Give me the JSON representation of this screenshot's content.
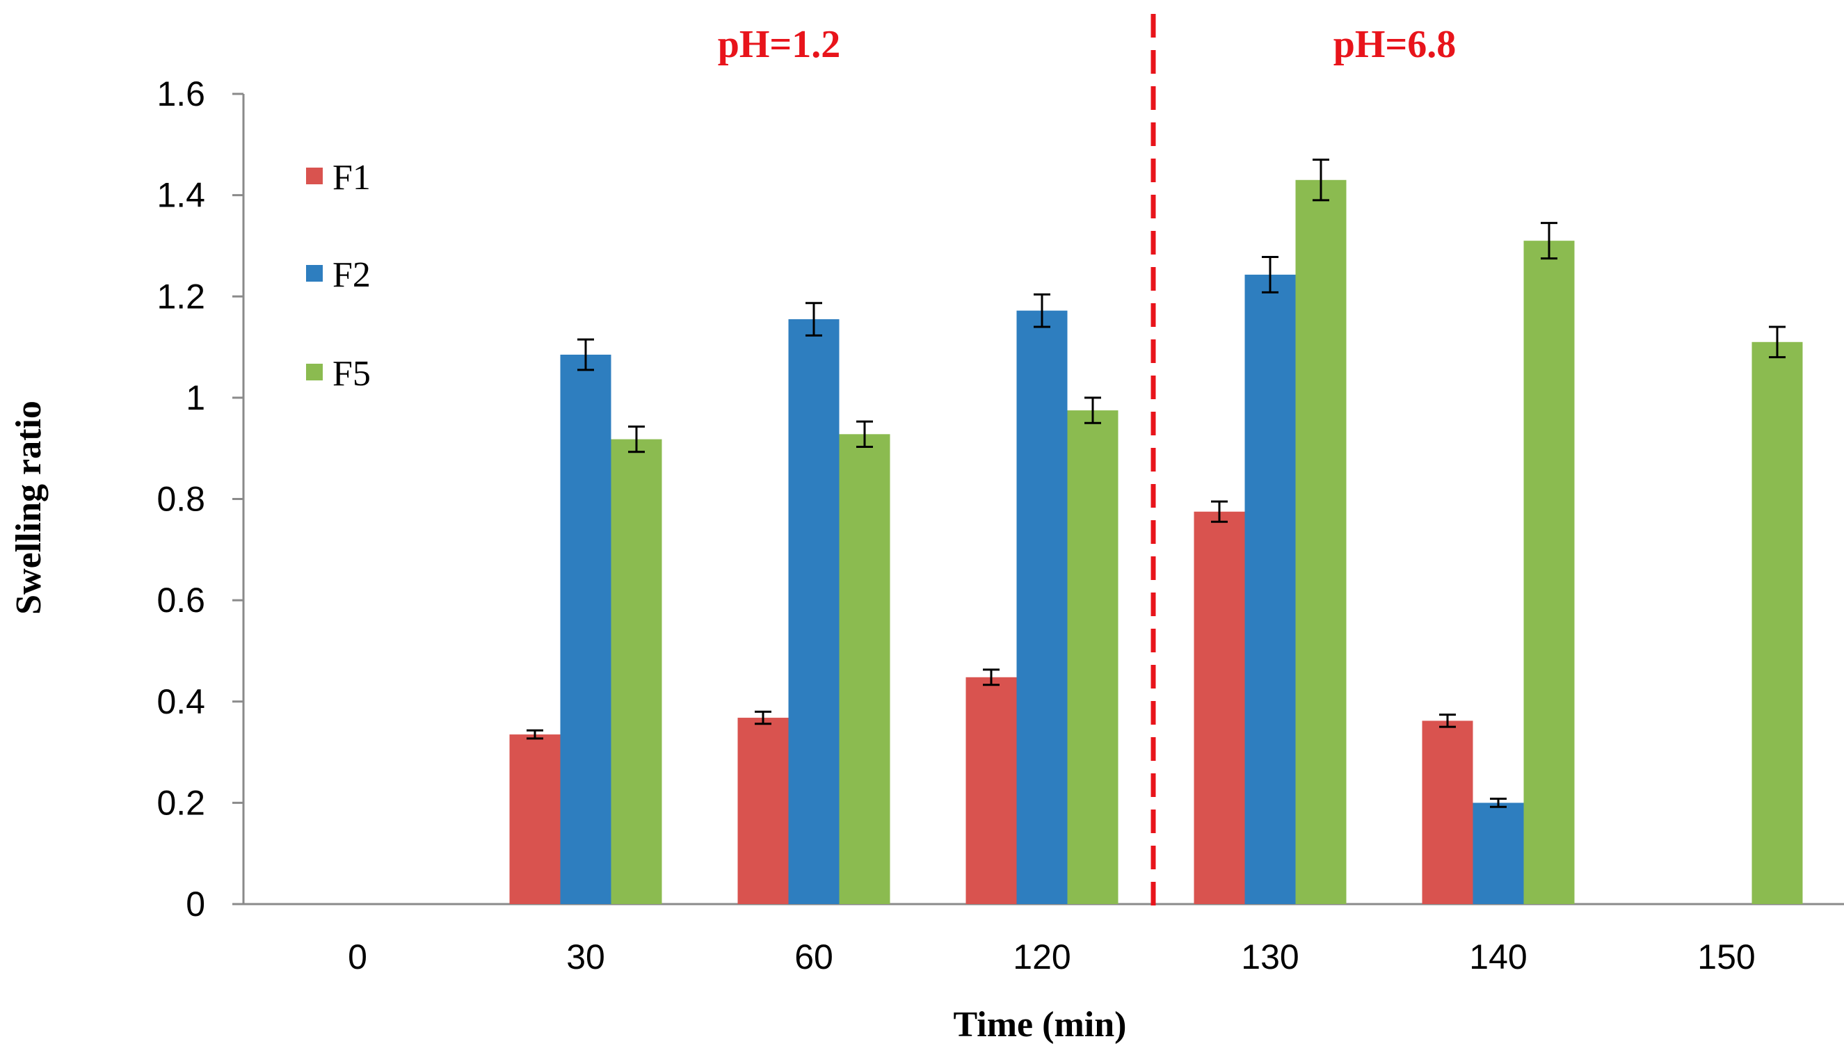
{
  "chart_data": {
    "type": "bar",
    "title": "",
    "xlabel": "Time (min)",
    "ylabel": "Swelling ratio",
    "categories": [
      "0",
      "30",
      "60",
      "120",
      "130",
      "140",
      "150"
    ],
    "ylim": [
      0,
      1.6
    ],
    "yticks": [
      "0",
      "0.2",
      "0.4",
      "0.6",
      "0.8",
      "1",
      "1.2",
      "1.4",
      "1.6"
    ],
    "series": [
      {
        "name": "F1",
        "color": "#d9534f",
        "values": [
          0,
          0.335,
          0.368,
          0.448,
          0.775,
          0.362,
          0
        ],
        "errors": [
          0,
          0.008,
          0.012,
          0.015,
          0.02,
          0.012,
          0
        ]
      },
      {
        "name": "F2",
        "color": "#2e7ebf",
        "values": [
          0,
          1.085,
          1.155,
          1.172,
          1.243,
          0.2,
          0
        ],
        "errors": [
          0,
          0.03,
          0.032,
          0.032,
          0.035,
          0.008,
          0
        ]
      },
      {
        "name": "F5",
        "color": "#8bbb50",
        "values": [
          0,
          0.918,
          0.928,
          0.975,
          1.43,
          1.31,
          1.11
        ],
        "errors": [
          0,
          0.025,
          0.025,
          0.025,
          0.04,
          0.035,
          0.03
        ]
      }
    ],
    "annotations": [
      {
        "text": "pH=1.2",
        "color": "#e8141b"
      },
      {
        "text": "pH=6.8",
        "color": "#e8141b"
      }
    ],
    "divider": {
      "after_category": "120",
      "style": "dashed",
      "color": "#e8141b"
    },
    "legend": {
      "placement": "top-left",
      "entries": [
        "F1",
        "F2",
        "F5"
      ]
    }
  }
}
